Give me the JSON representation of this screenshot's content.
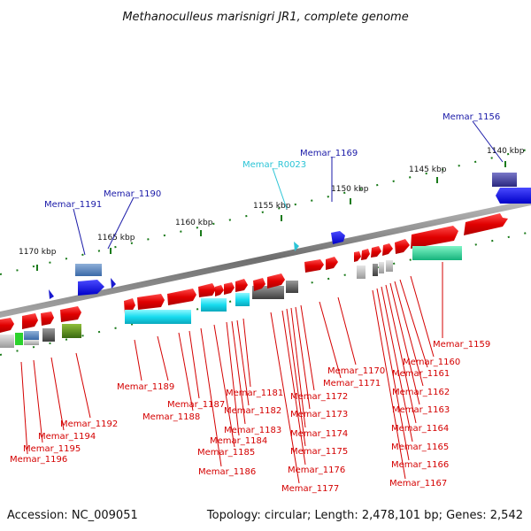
{
  "title": "Methanoculleus marisnigri JR1, complete genome",
  "footer": {
    "accession": "Accession: NC_009051",
    "summary": "Topology: circular; Length: 2,478,101 bp; Genes: 2,542"
  },
  "colors": {
    "forward_gene": "#e8000b",
    "trna": "#2bc4d6",
    "reverse_gene_label": "#1a1aa8",
    "forward_gene_label": "#d40000",
    "backbone": "#8c8c8c",
    "tick": "#1a7a1a"
  },
  "kbp_ticks": [
    "1140 kbp",
    "1145 kbp",
    "1150 kbp",
    "1155 kbp",
    "1160 kbp",
    "1165 kbp",
    "1170 kbp"
  ],
  "upper_labels": [
    {
      "id": "Memar_1156",
      "strand": "reverse"
    },
    {
      "id": "Memar_1169",
      "strand": "reverse"
    },
    {
      "id": "Memar_R0023",
      "strand": "rna"
    },
    {
      "id": "Memar_1190",
      "strand": "reverse"
    },
    {
      "id": "Memar_1191",
      "strand": "reverse"
    }
  ],
  "lower_labels": [
    "Memar_1159",
    "Memar_1160",
    "Memar_1161",
    "Memar_1162",
    "Memar_1163",
    "Memar_1164",
    "Memar_1165",
    "Memar_1166",
    "Memar_1167",
    "Memar_1170",
    "Memar_1171",
    "Memar_1172",
    "Memar_1173",
    "Memar_1174",
    "Memar_1175",
    "Memar_1176",
    "Memar_1177",
    "Memar_1181",
    "Memar_1182",
    "Memar_1183",
    "Memar_1184",
    "Memar_1185",
    "Memar_1186",
    "Memar_1187",
    "Memar_1188",
    "Memar_1189",
    "Memar_1192",
    "Memar_1194",
    "Memar_1195",
    "Memar_1196"
  ]
}
